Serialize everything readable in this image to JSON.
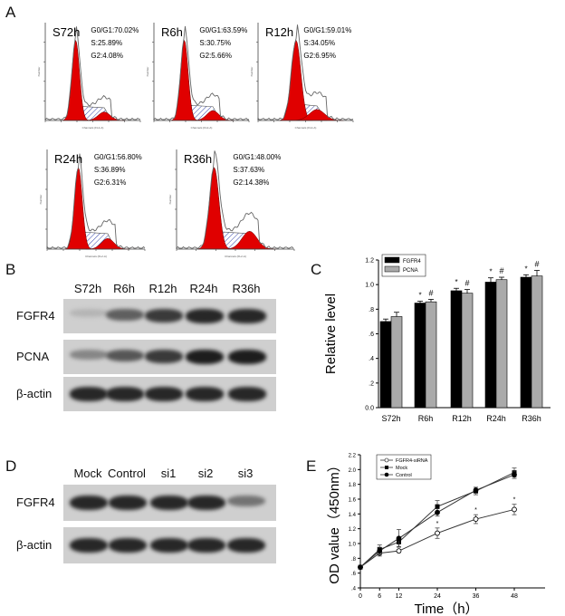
{
  "panels": {
    "a": "A",
    "b": "B",
    "c": "C",
    "d": "D",
    "e": "E"
  },
  "panel_a": {
    "x_axis_label": "Channels (FL2-A)",
    "y_axis_label": "Number",
    "histograms": [
      {
        "title": "S72h",
        "g0g1": "G0/G1:70.02%",
        "s": "S:25.89%",
        "g2": "G2:4.08%",
        "values": {
          "G0/G1": 70.02,
          "S": 25.89,
          "G2": 4.08
        }
      },
      {
        "title": "R6h",
        "g0g1": "G0/G1:63.59%",
        "s": "S:30.75%",
        "g2": "G2:5.66%",
        "values": {
          "G0/G1": 63.59,
          "S": 30.75,
          "G2": 5.66
        }
      },
      {
        "title": "R12h",
        "g0g1": "G0/G1:59.01%",
        "s": "S:34.05%",
        "g2": "G2:6.95%",
        "values": {
          "G0/G1": 59.01,
          "S": 34.05,
          "G2": 6.95
        }
      },
      {
        "title": "R24h",
        "g0g1": "G0/G1:56.80%",
        "s": "S:36.89%",
        "g2": "G2:6.31%",
        "values": {
          "G0/G1": 56.8,
          "S": 36.89,
          "G2": 6.31
        }
      },
      {
        "title": "R36h",
        "g0g1": "G0/G1:48.00%",
        "s": "S:37.63%",
        "g2": "G2:14.38%",
        "values": {
          "G0/G1": 48.0,
          "S": 37.63,
          "G2": 14.38
        }
      }
    ],
    "colors": {
      "g1_g2": "#e00000",
      "s_phase": "#3344aa"
    }
  },
  "panel_b": {
    "lanes": [
      "S72h",
      "R6h",
      "R12h",
      "R24h",
      "R36h"
    ],
    "rows": [
      {
        "label": "FGFR4",
        "intensity": [
          0.1,
          0.55,
          0.75,
          0.85,
          0.85
        ]
      },
      {
        "label": "PCNA",
        "intensity": [
          0.35,
          0.6,
          0.75,
          0.9,
          0.9
        ]
      },
      {
        "label": "β-actin",
        "intensity": [
          0.85,
          0.85,
          0.85,
          0.85,
          0.85
        ]
      }
    ]
  },
  "panel_d": {
    "lanes": [
      "Mock",
      "Control",
      "si1",
      "si2",
      "si3"
    ],
    "rows": [
      {
        "label": "FGFR4",
        "intensity": [
          0.85,
          0.85,
          0.85,
          0.85,
          0.45
        ]
      },
      {
        "label": "β-actin",
        "intensity": [
          0.85,
          0.85,
          0.85,
          0.85,
          0.85
        ]
      }
    ]
  },
  "chart_data": [
    {
      "type": "bar",
      "panel": "C",
      "categories": [
        "S72h",
        "R6h",
        "R12h",
        "R24h",
        "R36h"
      ],
      "series": [
        {
          "name": "FGFR4",
          "values": [
            0.7,
            0.85,
            0.95,
            1.02,
            1.06
          ],
          "errors": [
            0.02,
            0.015,
            0.02,
            0.035,
            0.02
          ],
          "marker": "*",
          "color": "#000000"
        },
        {
          "name": "PCNA",
          "values": [
            0.74,
            0.86,
            0.93,
            1.04,
            1.07
          ],
          "errors": [
            0.035,
            0.02,
            0.03,
            0.02,
            0.045
          ],
          "marker": "#",
          "color": "#aaaaaa"
        }
      ],
      "ylabel": "Relative level",
      "ylim": [
        0,
        1.2
      ],
      "yticks": [
        "0.0",
        ".2",
        ".4",
        ".6",
        ".8",
        "1.0",
        "1.2"
      ],
      "legend": "top-left"
    },
    {
      "type": "line",
      "panel": "E",
      "x": [
        0,
        6,
        12,
        24,
        36,
        48
      ],
      "xticks": [
        "0",
        "6",
        "12",
        "24",
        "36",
        "48"
      ],
      "series": [
        {
          "name": "FGFR4-siRNA",
          "values": [
            0.68,
            0.87,
            0.9,
            1.14,
            1.33,
            1.46
          ],
          "errors": [
            0.02,
            0.04,
            0.02,
            0.07,
            0.06,
            0.07
          ],
          "marker": "open-circle",
          "significance": [
            false,
            false,
            false,
            true,
            true,
            true
          ]
        },
        {
          "name": "Mock",
          "values": [
            0.68,
            0.92,
            1.02,
            1.5,
            1.71,
            1.96
          ],
          "errors": [
            0.02,
            0.06,
            0.06,
            0.08,
            0.05,
            0.06
          ],
          "marker": "square"
        },
        {
          "name": "Control",
          "values": [
            0.68,
            0.9,
            1.07,
            1.42,
            1.72,
            1.93
          ],
          "errors": [
            0.02,
            0.05,
            0.12,
            0.05,
            0.04,
            0.05
          ],
          "marker": "circle"
        }
      ],
      "xlabel": "Time（h）",
      "ylabel": "OD value（450nm）",
      "ylim": [
        0.4,
        2.2
      ],
      "yticks": [
        ".4",
        ".6",
        ".8",
        "1.0",
        "1.2",
        "1.4",
        "1.6",
        "1.8",
        "2.0",
        "2.2"
      ],
      "legend": "top-left"
    }
  ]
}
